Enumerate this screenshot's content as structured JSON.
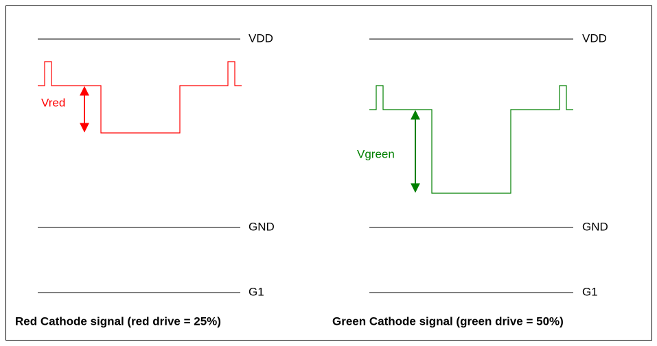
{
  "panels": [
    {
      "rails": [
        "VDD",
        "GND",
        "G1"
      ],
      "signal_label": "Vred",
      "caption": "Red Cathode signal (red drive = 25%)"
    },
    {
      "rails": [
        "VDD",
        "GND",
        "G1"
      ],
      "signal_label": "Vgreen",
      "caption": "Green Cathode signal (green drive = 50%)"
    }
  ]
}
